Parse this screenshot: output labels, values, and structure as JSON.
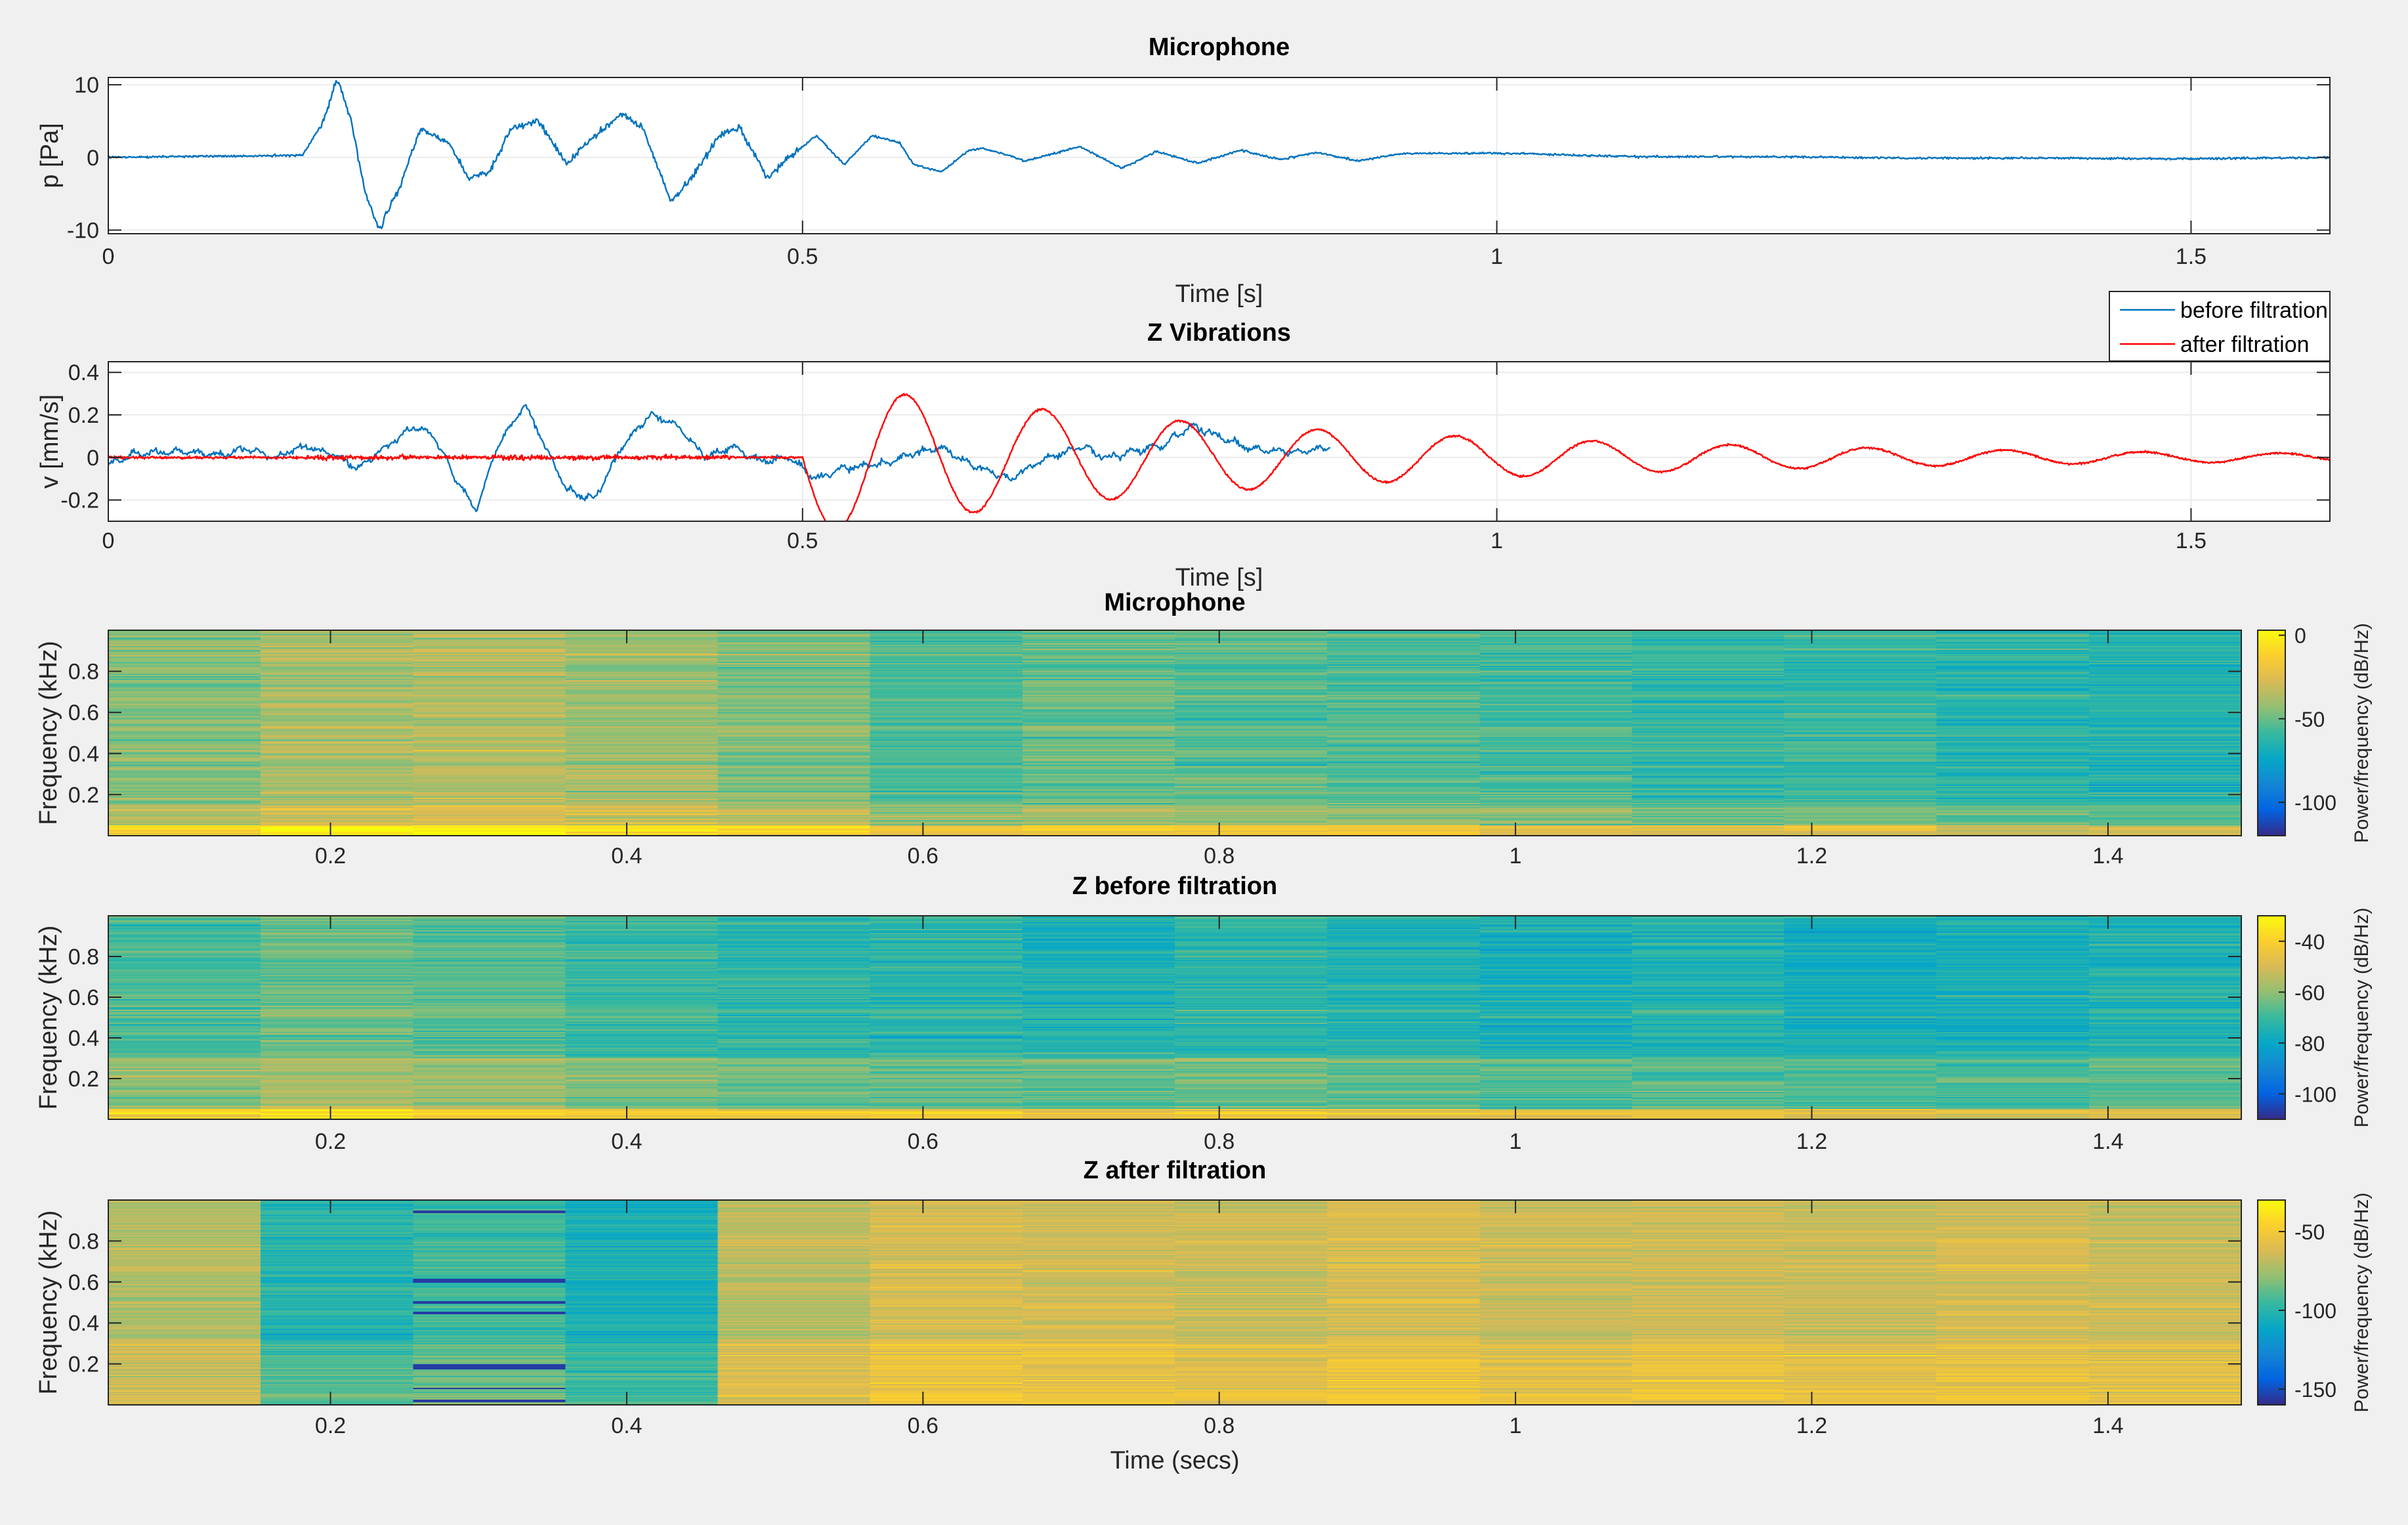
{
  "chart_data": [
    {
      "type": "line",
      "title": "Microphone",
      "xlabel": "Time [s]",
      "ylabel": "p [Pa]",
      "xlim": [
        0,
        1.6
      ],
      "ylim": [
        -10.5,
        11
      ],
      "xticks": [
        0,
        0.5,
        1,
        1.5
      ],
      "xtick_labels": [
        "0",
        "0.5",
        "1",
        "1.5"
      ],
      "yticks": [
        10,
        0,
        -10
      ],
      "ytick_labels": [
        "10",
        "0",
        "-10"
      ],
      "series": [
        {
          "name": "before filtration",
          "color": "#0072BD",
          "envelope": {
            "onset": 0.145,
            "decay": 1.9,
            "freq": 16.5,
            "amp": 10,
            "noise": 0.25,
            "points": [
              [
                0,
                0
              ],
              [
                0.14,
                0.3
              ],
              [
                0.155,
                5
              ],
              [
                0.165,
                11
              ],
              [
                0.175,
                5
              ],
              [
                0.185,
                -5
              ],
              [
                0.195,
                -10
              ],
              [
                0.21,
                -4
              ],
              [
                0.225,
                4
              ],
              [
                0.245,
                2
              ],
              [
                0.26,
                -3
              ],
              [
                0.275,
                -2
              ],
              [
                0.29,
                4
              ],
              [
                0.31,
                5
              ],
              [
                0.33,
                -1
              ],
              [
                0.35,
                3
              ],
              [
                0.37,
                6
              ],
              [
                0.385,
                4
              ],
              [
                0.405,
                -6
              ],
              [
                0.42,
                -3
              ],
              [
                0.44,
                3
              ],
              [
                0.455,
                4
              ],
              [
                0.475,
                -3
              ],
              [
                0.49,
                0
              ],
              [
                0.51,
                3
              ],
              [
                0.53,
                -1
              ],
              [
                0.55,
                3
              ],
              [
                0.57,
                2
              ],
              [
                0.58,
                -1
              ],
              [
                0.6,
                -2
              ],
              [
                0.62,
                1
              ],
              [
                0.63,
                1.2
              ],
              [
                0.645,
                0.5
              ],
              [
                0.66,
                -0.5
              ],
              [
                0.69,
                1
              ],
              [
                0.7,
                1.5
              ],
              [
                0.73,
                -1.5
              ],
              [
                0.755,
                0.8
              ],
              [
                0.785,
                -0.8
              ],
              [
                0.815,
                1
              ],
              [
                0.845,
                -0.3
              ],
              [
                0.87,
                0.7
              ],
              [
                0.9,
                -0.5
              ],
              [
                0.93,
                0.5
              ],
              [
                1.0,
                0.6
              ],
              [
                1.1,
                0.1
              ],
              [
                1.2,
                0.1
              ],
              [
                1.3,
                -0.1
              ],
              [
                1.4,
                -0.1
              ],
              [
                1.5,
                -0.2
              ],
              [
                1.6,
                0
              ]
            ]
          }
        }
      ]
    },
    {
      "type": "line",
      "title": "Z Vibrations",
      "xlabel": "Time [s]",
      "ylabel": "v [mm/s]",
      "xlim": [
        0,
        1.6
      ],
      "ylim": [
        -0.3,
        0.45
      ],
      "xticks": [
        0,
        0.5,
        1,
        1.5
      ],
      "xtick_labels": [
        "0",
        "0.5",
        "1",
        "1.5"
      ],
      "yticks": [
        0.4,
        0.2,
        0,
        -0.2
      ],
      "ytick_labels": [
        "0.4",
        "0.2",
        "0",
        "-0.2"
      ],
      "legend": {
        "location": "top-right",
        "entries": [
          "before filtration",
          "after filtration"
        ]
      },
      "series": [
        {
          "name": "before filtration",
          "color": "#0072BD",
          "points": [
            [
              0,
              -0.03
            ],
            [
              0.02,
              0.02
            ],
            [
              0.05,
              0.03
            ],
            [
              0.08,
              0.01
            ],
            [
              0.1,
              0.04
            ],
            [
              0.12,
              0.0
            ],
            [
              0.14,
              0.05
            ],
            [
              0.16,
              0.02
            ],
            [
              0.18,
              -0.05
            ],
            [
              0.2,
              0.05
            ],
            [
              0.22,
              0.15
            ],
            [
              0.235,
              0.1
            ],
            [
              0.25,
              -0.1
            ],
            [
              0.265,
              -0.25
            ],
            [
              0.28,
              0.05
            ],
            [
              0.3,
              0.25
            ],
            [
              0.315,
              0.05
            ],
            [
              0.33,
              -0.15
            ],
            [
              0.35,
              -0.2
            ],
            [
              0.37,
              0.05
            ],
            [
              0.39,
              0.2
            ],
            [
              0.41,
              0.15
            ],
            [
              0.43,
              0.0
            ],
            [
              0.45,
              0.05
            ],
            [
              0.47,
              -0.02
            ],
            [
              0.49,
              0.0
            ],
            [
              0.51,
              -0.1
            ],
            [
              0.53,
              -0.05
            ],
            [
              0.56,
              -0.03
            ],
            [
              0.58,
              0.02
            ],
            [
              0.6,
              0.05
            ],
            [
              0.62,
              -0.03
            ],
            [
              0.65,
              -0.1
            ],
            [
              0.67,
              -0.02
            ],
            [
              0.7,
              0.05
            ],
            [
              0.72,
              0.0
            ],
            [
              0.74,
              0.03
            ],
            [
              0.76,
              0.06
            ],
            [
              0.78,
              0.15
            ],
            [
              0.8,
              0.1
            ],
            [
              0.82,
              0.05
            ],
            [
              0.84,
              0.03
            ],
            [
              0.86,
              0.03
            ],
            [
              0.88,
              0.05
            ]
          ]
        },
        {
          "name": "after filtration",
          "color": "#FF0000",
          "envelope": {
            "onset": 0.5,
            "decay": 2.7,
            "freq": 10.1,
            "amp": 0.36,
            "pre_noise": 0.005
          }
        }
      ]
    },
    {
      "type": "heatmap",
      "title": "Microphone",
      "xlabel": "",
      "ylabel": "Frequency (kHz)",
      "xlim": [
        0.05,
        1.49
      ],
      "ylim": [
        0,
        1
      ],
      "xticks": [
        0.2,
        0.4,
        0.6,
        0.8,
        1,
        1.2,
        1.4
      ],
      "xtick_labels": [
        "0.2",
        "0.4",
        "0.6",
        "0.8",
        "1",
        "1.2",
        "1.4"
      ],
      "yticks": [
        0.8,
        0.6,
        0.4,
        0.2
      ],
      "ytick_labels": [
        "0.8",
        "0.6",
        "0.4",
        "0.2"
      ],
      "colorbar": {
        "label": "Power/frequency (dB/Hz)",
        "ticks": [
          0,
          -50,
          -100
        ],
        "tick_labels": [
          "0",
          "-50",
          "-100"
        ],
        "range": [
          -120,
          3
        ]
      },
      "time_segments": 14,
      "segment_level": [
        -45,
        -38,
        -36,
        -40,
        -46,
        -55,
        -50,
        -52,
        -54,
        -56,
        -60,
        -58,
        -62,
        -64
      ],
      "band_level": [
        {
          "until_freq": 0.05,
          "boost": 35
        },
        {
          "until_freq": 0.15,
          "boost": 12
        },
        {
          "until_freq": 1.0,
          "boost": 0
        }
      ],
      "line_noise": 12,
      "segment_noise": 6
    },
    {
      "type": "heatmap",
      "title": "Z before filtration",
      "xlabel": "",
      "ylabel": "Frequency (kHz)",
      "xlim": [
        0.05,
        1.49
      ],
      "ylim": [
        0,
        1
      ],
      "xticks": [
        0.2,
        0.4,
        0.6,
        0.8,
        1,
        1.2,
        1.4
      ],
      "xtick_labels": [
        "0.2",
        "0.4",
        "0.6",
        "0.8",
        "1",
        "1.2",
        "1.4"
      ],
      "yticks": [
        0.8,
        0.6,
        0.4,
        0.2
      ],
      "ytick_labels": [
        "0.8",
        "0.6",
        "0.4",
        "0.2"
      ],
      "colorbar": {
        "label": "Power/frequency (dB/Hz)",
        "ticks": [
          -40,
          -60,
          -80,
          -100
        ],
        "tick_labels": [
          "-40",
          "-60",
          "-80",
          "-100"
        ],
        "range": [
          -110,
          -30
        ]
      },
      "time_segments": 14,
      "segment_level": [
        -68,
        -64,
        -66,
        -70,
        -72,
        -72,
        -74,
        -72,
        -74,
        -76,
        -74,
        -76,
        -76,
        -74
      ],
      "band_level": [
        {
          "until_freq": 0.05,
          "boost": 28
        },
        {
          "until_freq": 0.3,
          "boost": 8
        },
        {
          "until_freq": 1.0,
          "boost": 0
        }
      ],
      "line_noise": 7,
      "segment_noise": 4
    },
    {
      "type": "heatmap",
      "title": "Z after filtration",
      "xlabel": "Time (secs)",
      "ylabel": "Frequency (kHz)",
      "xlim": [
        0.05,
        1.49
      ],
      "ylim": [
        0,
        1
      ],
      "xticks": [
        0.2,
        0.4,
        0.6,
        0.8,
        1,
        1.2,
        1.4
      ],
      "xtick_labels": [
        "0.2",
        "0.4",
        "0.6",
        "0.8",
        "1",
        "1.2",
        "1.4"
      ],
      "yticks": [
        0.8,
        0.6,
        0.4,
        0.2
      ],
      "ytick_labels": [
        "0.8",
        "0.6",
        "0.4",
        "0.2"
      ],
      "colorbar": {
        "label": "Power/frequency (dB/Hz)",
        "ticks": [
          -50,
          -100,
          -150
        ],
        "tick_labels": [
          "-50",
          "-100",
          "-150"
        ],
        "range": [
          -160,
          -30
        ]
      },
      "time_segments": 14,
      "segment_level": [
        -72,
        -100,
        -95,
        -105,
        -70,
        -62,
        -64,
        -66,
        -62,
        -66,
        -64,
        -66,
        -64,
        -66
      ],
      "band_level": [
        {
          "until_freq": 0.06,
          "boost": 10
        },
        {
          "until_freq": 0.3,
          "boost": 8
        },
        {
          "until_freq": 1.0,
          "boost": 0
        }
      ],
      "line_noise": 10,
      "segment_noise": 5,
      "dark_lines": [
        {
          "segment": 2,
          "freqs": [
            0.94,
            0.61,
            0.6,
            0.5,
            0.45,
            0.19,
            0.18,
            0.08,
            0.02
          ]
        }
      ]
    }
  ],
  "colors": {
    "figure_bg": "#F0F0F0",
    "axes_bg": "#FFFFFF",
    "grid": "#EBEBEB",
    "parula": [
      "#352A87",
      "#0363E1",
      "#1485D4",
      "#06A7C6",
      "#38B99E",
      "#92BF73",
      "#D9BA56",
      "#FCCE2E",
      "#F9FB0E"
    ]
  }
}
